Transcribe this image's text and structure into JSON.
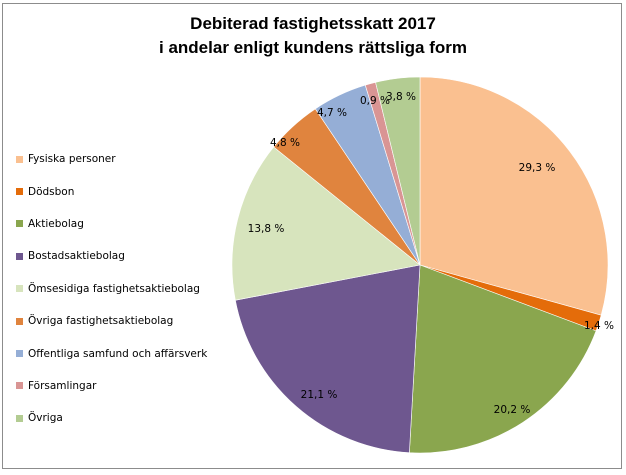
{
  "chart_data": {
    "type": "pie",
    "title": [
      "Debiterad fastighetsskatt 2017",
      "i andelar enligt kundens rättsliga form"
    ],
    "start_angle": "12 o'clock",
    "direction": "clockwise",
    "legend_position": "left",
    "slices": [
      {
        "name": "Fysiska personer",
        "value": 29.3,
        "label": "29,3 %",
        "color": "#FAC090"
      },
      {
        "name": "Dödsbon",
        "value": 1.4,
        "label": "1,4 %",
        "color": "#E46C0A"
      },
      {
        "name": "Aktiebolag",
        "value": 20.2,
        "label": "20,2 %",
        "color": "#8AA64E"
      },
      {
        "name": "Bostadsaktiebolag",
        "value": 21.1,
        "label": "21,1 %",
        "color": "#6E578F"
      },
      {
        "name": "Ömsesidiga fastighetsaktiebolag",
        "value": 13.8,
        "label": "13,8 %",
        "color": "#D7E4BD"
      },
      {
        "name": "Övriga fastighetsaktiebolag",
        "value": 4.8,
        "label": "4,8 %",
        "color": "#E0843E"
      },
      {
        "name": "Offentliga samfund och affärsverk",
        "value": 4.7,
        "label": "4,7 %",
        "color": "#95AED6"
      },
      {
        "name": "Församlingar",
        "value": 0.9,
        "label": "0,9 %",
        "color": "#D99594"
      },
      {
        "name": "Övriga",
        "value": 3.8,
        "label": "3,8 %",
        "color": "#B3CC92"
      }
    ]
  }
}
